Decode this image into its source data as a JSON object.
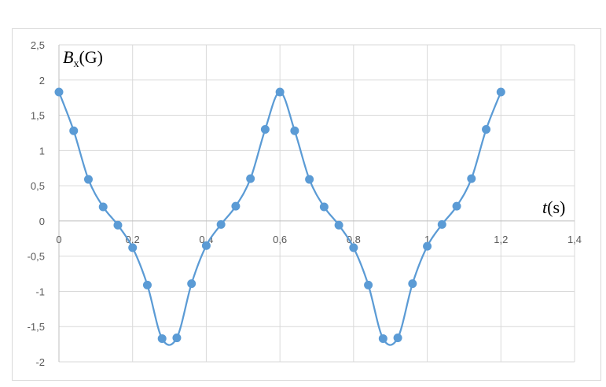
{
  "chart_data": {
    "type": "line",
    "smooth": true,
    "markers": true,
    "title": "",
    "xlabel": {
      "var": "t",
      "unit": "(s)"
    },
    "ylabel": {
      "var": "B",
      "sub": "x",
      "unit": "(G)"
    },
    "xlim": [
      0,
      1.4
    ],
    "ylim": [
      -2,
      2.5
    ],
    "x_ticks": [
      0,
      0.2,
      0.4,
      0.6,
      0.8,
      1,
      1.2,
      1.4
    ],
    "x_tick_labels": [
      "0",
      "0,2",
      "0,4",
      "0,6",
      "0,8",
      "1",
      "1,2",
      "1,4"
    ],
    "y_ticks": [
      2.5,
      2,
      1.5,
      1,
      0.5,
      0,
      -0.5,
      -1,
      -1.5,
      -2
    ],
    "y_tick_labels": [
      "2,5",
      "2",
      "1,5",
      "1",
      "0,5",
      "0",
      "-0,5",
      "-1",
      "-1,5",
      "-2"
    ],
    "grid": true,
    "legend": "none",
    "series": [
      {
        "color": "#5b9bd5",
        "x": [
          0,
          0.04,
          0.08,
          0.12,
          0.16,
          0.2,
          0.24,
          0.28,
          0.32,
          0.36,
          0.4,
          0.44,
          0.48,
          0.52,
          0.56,
          0.6,
          0.64,
          0.68,
          0.72,
          0.76,
          0.8,
          0.84,
          0.88,
          0.92,
          0.96,
          1,
          1.04,
          1.08,
          1.12,
          1.16,
          1.2
        ],
        "y": [
          1.83,
          1.28,
          0.59,
          0.2,
          -0.06,
          -0.38,
          -0.91,
          -1.67,
          -1.66,
          -0.89,
          -0.35,
          -0.05,
          0.21,
          0.6,
          1.3,
          1.83,
          1.28,
          0.59,
          0.2,
          -0.06,
          -0.38,
          -0.91,
          -1.67,
          -1.66,
          -0.89,
          -0.36,
          -0.05,
          0.21,
          0.6,
          1.3,
          1.83
        ]
      }
    ]
  }
}
